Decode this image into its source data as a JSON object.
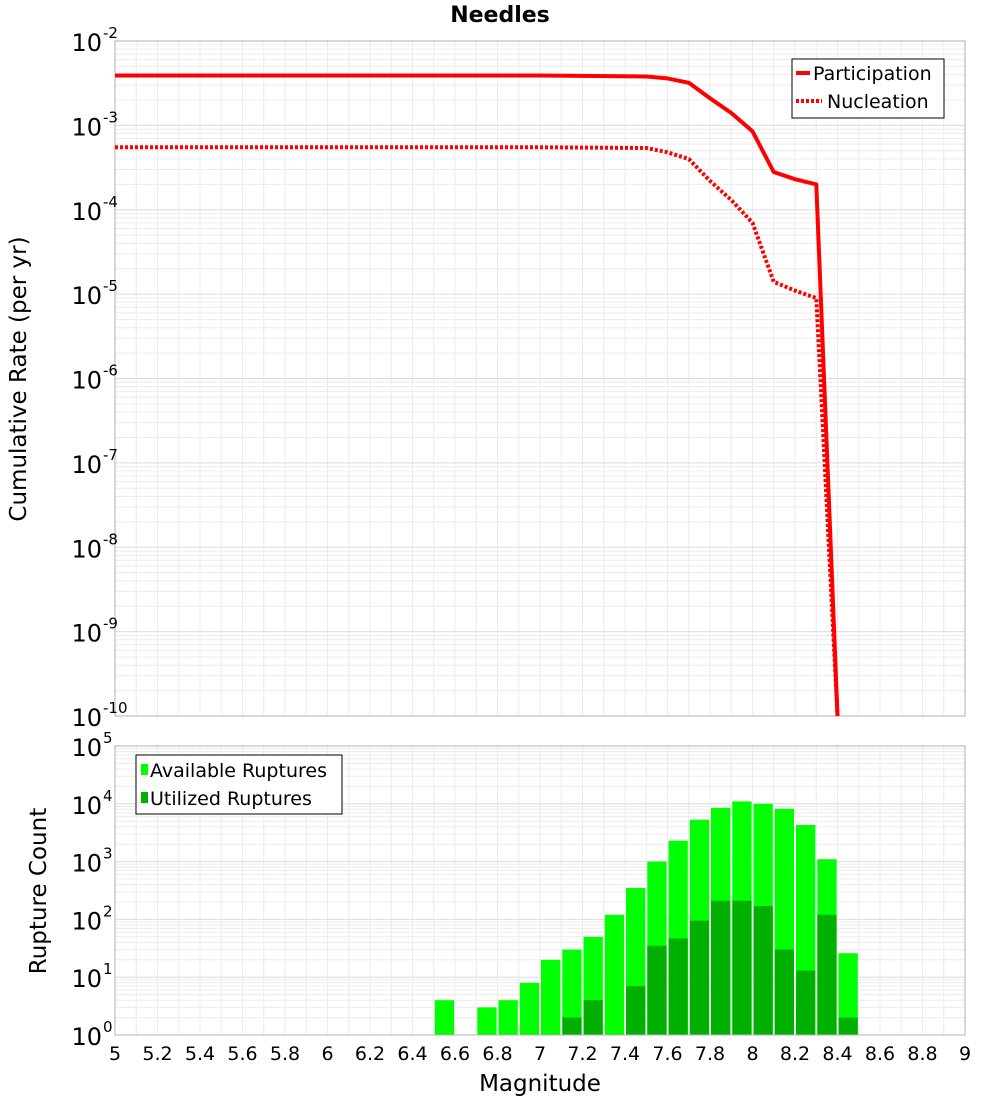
{
  "chart_data": [
    {
      "type": "line",
      "title": "Needles",
      "ylabel": "Cumulative Rate (per yr)",
      "xlabel": "",
      "xlim": [
        5,
        9
      ],
      "ylim_exp": [
        -10,
        -2
      ],
      "yscale": "log",
      "y_tick_exponents": [
        "-2",
        "-3",
        "-4",
        "-5",
        "-6",
        "-7",
        "-8",
        "-9",
        "-10"
      ],
      "y_tick_base": "10",
      "legend_position": "top-right",
      "series": [
        {
          "name": "Participation",
          "style": "solid",
          "color": "#ff0000",
          "x": [
            5.0,
            7.0,
            7.5,
            7.6,
            7.7,
            7.8,
            7.9,
            8.0,
            8.1,
            8.2,
            8.3,
            8.4
          ],
          "y": [
            0.0039,
            0.0039,
            0.0038,
            0.0036,
            0.0032,
            0.0021,
            0.0014,
            0.00085,
            0.00028,
            0.00023,
            0.0002,
            1e-10
          ]
        },
        {
          "name": "Nucleation",
          "style": "dotted",
          "color": "#ff0000",
          "x": [
            5.0,
            7.0,
            7.5,
            7.6,
            7.7,
            7.8,
            7.9,
            8.0,
            8.1,
            8.2,
            8.3,
            8.4
          ],
          "y": [
            0.00055,
            0.00055,
            0.00054,
            0.00048,
            0.0004,
            0.00022,
            0.00013,
            7e-05,
            1.4e-05,
            1.1e-05,
            9e-06,
            1e-10
          ]
        }
      ]
    },
    {
      "type": "bar",
      "title": "",
      "ylabel": "Rupture Count",
      "xlabel": "Magnitude",
      "xlim": [
        5,
        9
      ],
      "ylim_exp": [
        0,
        5
      ],
      "yscale": "log",
      "y_tick_exponents": [
        "5",
        "4",
        "3",
        "2",
        "1",
        "0"
      ],
      "y_tick_base": "10",
      "x_ticks": [
        "5",
        "5.2",
        "5.4",
        "5.6",
        "5.8",
        "6",
        "6.2",
        "6.4",
        "6.6",
        "6.8",
        "7",
        "7.2",
        "7.4",
        "7.6",
        "7.8",
        "8",
        "8.2",
        "8.4",
        "8.6",
        "8.8",
        "9"
      ],
      "legend_position": "top-left",
      "series": [
        {
          "name": "Available Ruptures",
          "color": "#00ff00",
          "bins": [
            6.5,
            6.7,
            6.8,
            6.9,
            7.0,
            7.1,
            7.2,
            7.3,
            7.4,
            7.5,
            7.6,
            7.7,
            7.8,
            7.9,
            8.0,
            8.1,
            8.2,
            8.3,
            8.4
          ],
          "values": [
            4,
            3,
            4,
            8,
            20,
            30,
            50,
            120,
            350,
            1000,
            2300,
            5300,
            8500,
            11000,
            10000,
            8200,
            4300,
            1100,
            26
          ]
        },
        {
          "name": "Utilized Ruptures",
          "color": "#00b000",
          "bins": [
            7.1,
            7.2,
            7.4,
            7.5,
            7.6,
            7.7,
            7.8,
            7.9,
            8.0,
            8.1,
            8.2,
            8.3,
            8.4
          ],
          "values": [
            2,
            4,
            7,
            35,
            47,
            95,
            210,
            210,
            170,
            30,
            13,
            120,
            2
          ]
        }
      ]
    }
  ]
}
